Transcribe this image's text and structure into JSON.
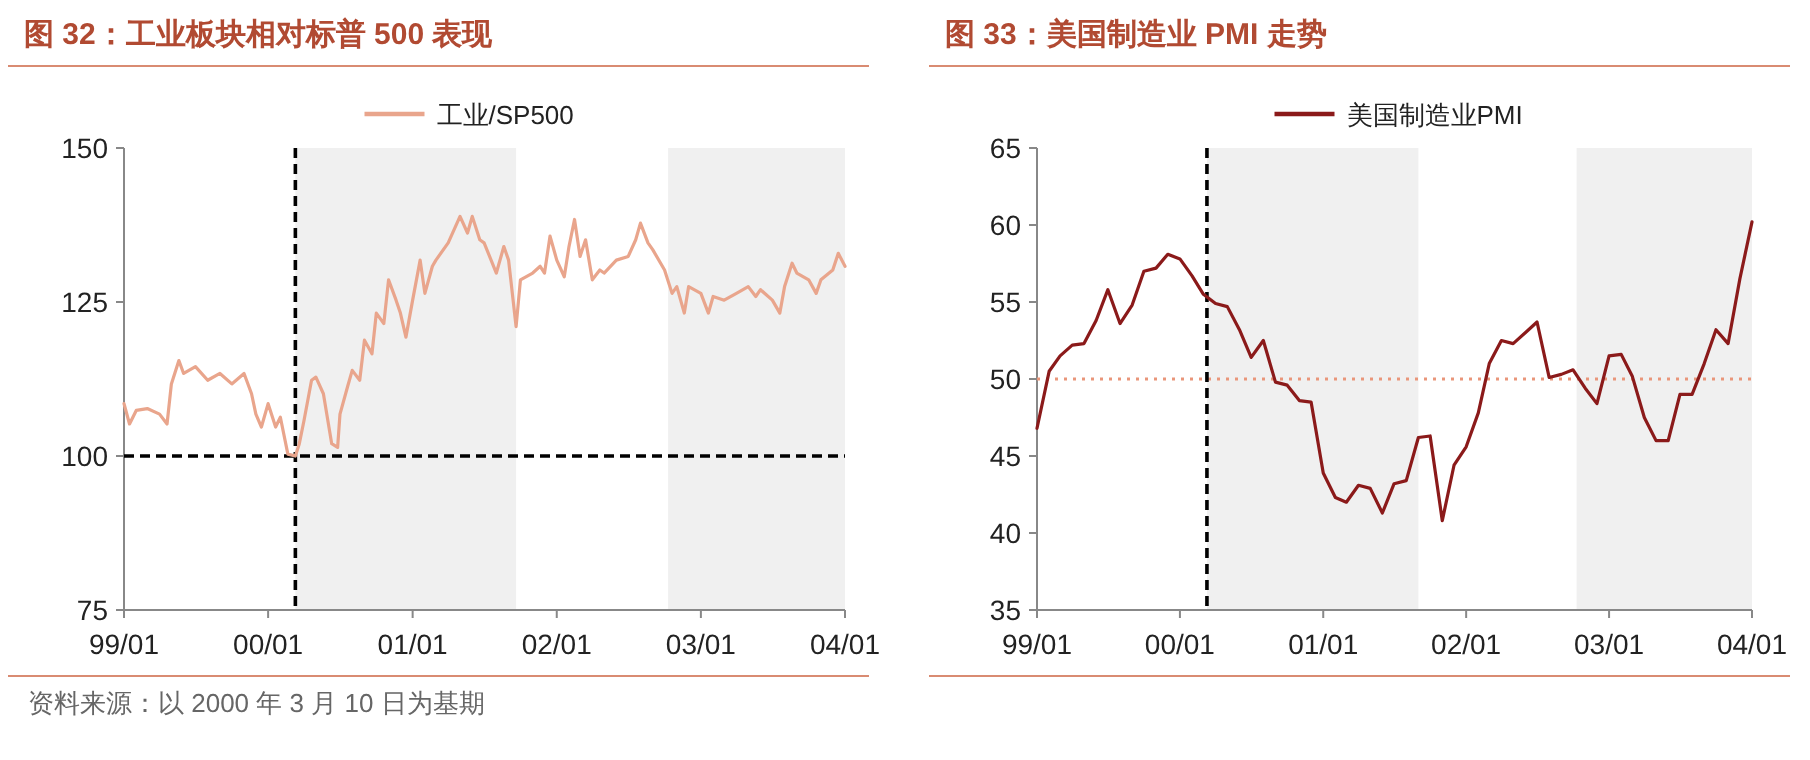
{
  "chart_data": [
    {
      "type": "line",
      "title": "图 32：工业板块相对标普 500 表现",
      "legend": "top",
      "xlim": [
        "1999-01",
        "2004-01"
      ],
      "ylim": [
        75,
        150
      ],
      "yticks": [
        75,
        100,
        125,
        150
      ],
      "xticks": [
        {
          "value": "1999-01",
          "label": "99/01"
        },
        {
          "value": "2000-01",
          "label": "00/01"
        },
        {
          "value": "2001-01",
          "label": "01/01"
        },
        {
          "value": "2002-01",
          "label": "02/01"
        },
        {
          "value": "2003-01",
          "label": "03/01"
        },
        {
          "value": "2004-01",
          "label": "04/01"
        }
      ],
      "x": [
        "1999-01-01",
        "1999-01-15",
        "1999-02-01",
        "1999-03-01",
        "1999-04-01",
        "1999-04-20",
        "1999-05-01",
        "1999-05-20",
        "1999-06-01",
        "1999-07-01",
        "1999-08-01",
        "1999-09-01",
        "1999-10-01",
        "1999-11-01",
        "1999-11-20",
        "1999-12-01",
        "1999-12-15",
        "2000-01-01",
        "2000-01-20",
        "2000-02-01",
        "2000-02-20",
        "2000-03-10",
        "2000-03-20",
        "2000-04-01",
        "2000-04-20",
        "2000-05-01",
        "2000-05-20",
        "2000-06-10",
        "2000-06-25",
        "2000-07-01",
        "2000-07-20",
        "2000-08-01",
        "2000-08-20",
        "2000-09-01",
        "2000-09-20",
        "2000-10-01",
        "2000-10-20",
        "2000-11-01",
        "2000-11-20",
        "2000-12-01",
        "2000-12-15",
        "2001-01-01",
        "2001-01-20",
        "2001-02-01",
        "2001-02-20",
        "2001-03-01",
        "2001-04-01",
        "2001-05-01",
        "2001-05-20",
        "2001-06-01",
        "2001-06-20",
        "2001-07-01",
        "2001-08-01",
        "2001-08-20",
        "2001-09-01",
        "2001-09-20",
        "2001-10-01",
        "2001-11-01",
        "2001-11-20",
        "2001-12-01",
        "2001-12-15",
        "2002-01-01",
        "2002-01-20",
        "2002-02-01",
        "2002-02-15",
        "2002-03-01",
        "2002-03-15",
        "2002-04-01",
        "2002-04-20",
        "2002-05-01",
        "2002-06-01",
        "2002-07-01",
        "2002-07-20",
        "2002-08-01",
        "2002-08-20",
        "2002-09-01",
        "2002-10-01",
        "2002-10-20",
        "2002-11-01",
        "2002-11-20",
        "2002-12-01",
        "2003-01-01",
        "2003-01-20",
        "2003-02-01",
        "2003-03-01",
        "2003-04-01",
        "2003-05-01",
        "2003-05-20",
        "2003-06-01",
        "2003-07-01",
        "2003-07-20",
        "2003-08-01",
        "2003-08-20",
        "2003-09-01",
        "2003-10-01",
        "2003-10-20",
        "2003-11-01",
        "2003-12-01",
        "2003-12-15",
        "2004-01-01"
      ],
      "series": [
        {
          "name": "工业/SP500",
          "color": "#e9a58c",
          "values": [
            108.5,
            105.2,
            107.4,
            107.7,
            106.8,
            105.2,
            111.7,
            115.5,
            113.4,
            114.5,
            112.3,
            113.4,
            111.7,
            113.4,
            110.1,
            106.8,
            104.7,
            108.5,
            104.7,
            106.3,
            100.3,
            100,
            102,
            105.8,
            112.3,
            112.8,
            110.1,
            102,
            101.4,
            106.8,
            111.2,
            113.9,
            112.3,
            118.8,
            116.6,
            123.2,
            121.5,
            128.6,
            125.3,
            123.2,
            119.3,
            125.3,
            131.8,
            126.4,
            130.8,
            131.8,
            134.6,
            138.9,
            136.2,
            138.9,
            135.1,
            134.6,
            129.7,
            134,
            131.8,
            121,
            128.6,
            129.7,
            130.8,
            129.7,
            135.7,
            131.8,
            129.1,
            134,
            138.4,
            132.4,
            135.1,
            128.6,
            130.2,
            129.7,
            131.8,
            132.4,
            135.1,
            137.8,
            134.6,
            133.5,
            130.2,
            126.4,
            127.5,
            123.2,
            127.5,
            126.4,
            123.2,
            125.9,
            125.3,
            126.4,
            127.5,
            125.9,
            127,
            125.3,
            123.2,
            127.5,
            131.3,
            129.7,
            128.6,
            126.4,
            128.6,
            130.2,
            132.9,
            130.8
          ]
        }
      ],
      "ref_lines": [
        {
          "axis": "y",
          "value": 100,
          "color": "#000000",
          "line_style": "dashed"
        },
        {
          "axis": "x",
          "value": "2000-03-10",
          "color": "#000000",
          "line_style": "dashed"
        }
      ],
      "bands": [
        {
          "axis": "x",
          "from": "2000-03-10",
          "to": "2001-09-20",
          "color": "#f0f0f0"
        },
        {
          "axis": "x",
          "from": "2002-10-10",
          "to": "2004-01-01",
          "color": "#f0f0f0"
        }
      ],
      "annotations": [
        "资料来源：以 2000 年 3 月 10 日为基期"
      ]
    },
    {
      "type": "line",
      "title": "图 33：美国制造业 PMI 走势",
      "legend": "top",
      "xlim": [
        "1999-01",
        "2004-01"
      ],
      "ylim": [
        35,
        65
      ],
      "yticks": [
        35,
        40,
        45,
        50,
        55,
        60,
        65
      ],
      "xticks": [
        {
          "value": "1999-01",
          "label": "99/01"
        },
        {
          "value": "2000-01",
          "label": "00/01"
        },
        {
          "value": "2001-01",
          "label": "01/01"
        },
        {
          "value": "2002-01",
          "label": "02/01"
        },
        {
          "value": "2003-01",
          "label": "03/01"
        },
        {
          "value": "2004-01",
          "label": "04/01"
        }
      ],
      "x": [
        "1999-01",
        "1999-02",
        "1999-03",
        "1999-04",
        "1999-05",
        "1999-06",
        "1999-07",
        "1999-08",
        "1999-09",
        "1999-10",
        "1999-11",
        "1999-12",
        "2000-01",
        "2000-02",
        "2000-03",
        "2000-04",
        "2000-05",
        "2000-06",
        "2000-07",
        "2000-08",
        "2000-09",
        "2000-10",
        "2000-11",
        "2000-12",
        "2001-01",
        "2001-02",
        "2001-03",
        "2001-04",
        "2001-05",
        "2001-06",
        "2001-07",
        "2001-08",
        "2001-09",
        "2001-10",
        "2001-11",
        "2001-12",
        "2002-01",
        "2002-02",
        "2002-03",
        "2002-04",
        "2002-05",
        "2002-06",
        "2002-07",
        "2002-08",
        "2002-09",
        "2002-10",
        "2002-11",
        "2002-12",
        "2003-01",
        "2003-02",
        "2003-03",
        "2003-04",
        "2003-05",
        "2003-06",
        "2003-07",
        "2003-08",
        "2003-09",
        "2003-10",
        "2003-11",
        "2003-12",
        "2004-01"
      ],
      "series": [
        {
          "name": "美国制造业PMI",
          "color": "#8b1a1a",
          "values": [
            46.8,
            50.5,
            51.5,
            52.2,
            52.3,
            53.8,
            55.8,
            53.6,
            54.8,
            57.0,
            57.2,
            58.1,
            57.8,
            56.7,
            55.5,
            54.9,
            54.7,
            53.2,
            51.4,
            52.5,
            49.8,
            49.6,
            48.6,
            48.5,
            43.9,
            42.3,
            42.0,
            43.1,
            42.9,
            41.3,
            43.2,
            43.4,
            46.2,
            46.3,
            40.8,
            44.4,
            45.6,
            47.8,
            51.0,
            52.5,
            52.3,
            53.0,
            53.7,
            50.1,
            50.3,
            50.6,
            49.4,
            48.4,
            51.5,
            51.6,
            50.2,
            47.5,
            46.0,
            46.0,
            49.0,
            49.0,
            51.0,
            53.2,
            52.3,
            56.5,
            60.2
          ]
        }
      ],
      "ref_lines": [
        {
          "axis": "y",
          "value": 50,
          "color": "#e9967a",
          "line_style": "dotted"
        },
        {
          "axis": "x",
          "value": "2000-03-10",
          "color": "#000000",
          "line_style": "dashed"
        }
      ],
      "bands": [
        {
          "axis": "x",
          "from": "2000-03-10",
          "to": "2001-09-01",
          "color": "#f0f0f0"
        },
        {
          "axis": "x",
          "from": "2002-10-10",
          "to": "2004-01-01",
          "color": "#f0f0f0"
        }
      ]
    }
  ]
}
